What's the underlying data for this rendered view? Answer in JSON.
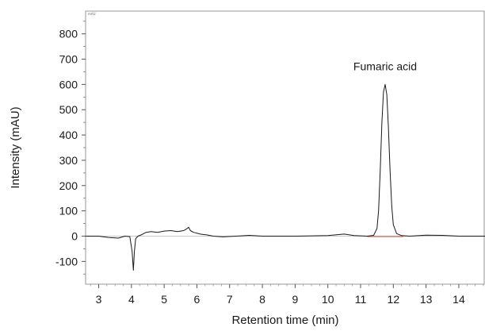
{
  "chart_data": {
    "type": "line",
    "xlabel": "Retention time (min)",
    "ylabel": "Intensity (mAU)",
    "corner_label": "mAU",
    "xlim": [
      2.6,
      14.8
    ],
    "ylim": [
      -190,
      890
    ],
    "x_ticks": [
      3,
      4,
      5,
      6,
      7,
      8,
      9,
      10,
      11,
      12,
      13,
      14
    ],
    "y_ticks": [
      -100,
      0,
      100,
      200,
      300,
      400,
      500,
      600,
      700,
      800
    ],
    "grid": false,
    "annotations": [
      {
        "text": "Fumaric acid",
        "x": 11.75,
        "y": 600
      }
    ],
    "baseline_segment": {
      "x": [
        11.2,
        12.3
      ],
      "y": [
        0,
        0
      ],
      "color": "#e06060"
    },
    "series": [
      {
        "color": "#1a1a1a",
        "x": [
          2.6,
          3.0,
          3.3,
          3.6,
          3.8,
          3.95,
          4.02,
          4.06,
          4.09,
          4.13,
          4.2,
          4.3,
          4.45,
          4.6,
          4.8,
          5.0,
          5.2,
          5.4,
          5.6,
          5.7,
          5.75,
          5.8,
          5.9,
          6.1,
          6.3,
          6.5,
          6.8,
          7.2,
          7.6,
          8.0,
          9.0,
          10.0,
          10.5,
          10.8,
          11.2,
          11.4,
          11.5,
          11.55,
          11.6,
          11.65,
          11.7,
          11.75,
          11.8,
          11.85,
          11.9,
          11.95,
          12.0,
          12.1,
          12.25,
          12.5,
          13.0,
          13.5,
          14.0,
          14.8
        ],
        "y": [
          0,
          0,
          -5,
          -8,
          0,
          -2,
          -60,
          -135,
          -60,
          -10,
          0,
          5,
          15,
          18,
          15,
          20,
          22,
          18,
          22,
          30,
          35,
          22,
          15,
          8,
          5,
          0,
          -3,
          0,
          3,
          0,
          0,
          2,
          8,
          2,
          0,
          3,
          30,
          100,
          260,
          450,
          570,
          600,
          560,
          430,
          260,
          120,
          45,
          10,
          2,
          0,
          4,
          3,
          0,
          0
        ]
      }
    ]
  }
}
